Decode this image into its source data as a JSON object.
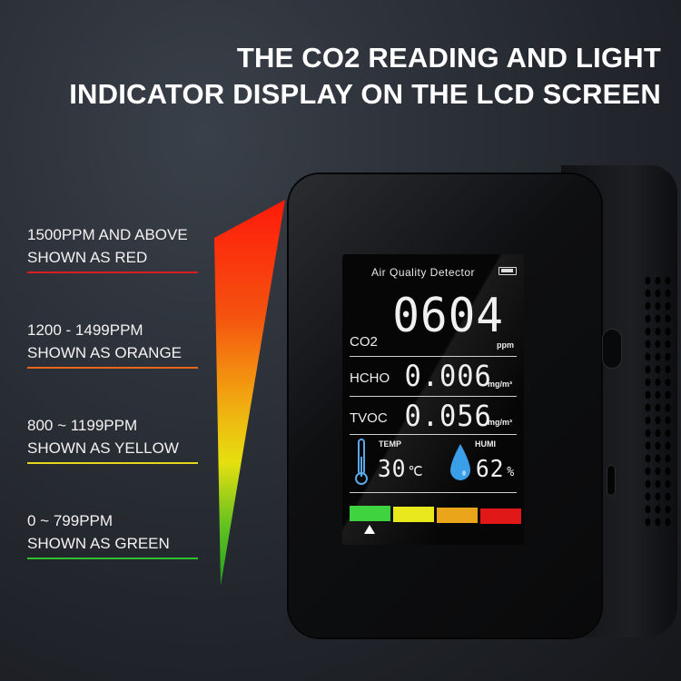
{
  "headline": {
    "line1": "THE CO2 READING AND LIGHT",
    "line2": "INDICATOR DISPLAY ON THE LCD SCREEN"
  },
  "legend": [
    {
      "line1": "1500PPM AND ABOVE",
      "line2": "SHOWN AS RED",
      "color": "#d81e1e"
    },
    {
      "line1": "1200 - 1499PPM",
      "line2": "SHOWN AS ORANGE",
      "color": "#e8661c"
    },
    {
      "line1": "800 ~ 1199PPM",
      "line2": "SHOWN AS YELLOW",
      "color": "#e6d51a"
    },
    {
      "line1": "0 ~ 799PPM",
      "line2": "SHOWN AS GREEN",
      "color": "#2fbf2f"
    }
  ],
  "screen": {
    "title": "Air Quality Detector",
    "co2": {
      "label": "CO2",
      "value": "0604",
      "unit": "ppm"
    },
    "hcho": {
      "label": "HCHO",
      "value": "0.006",
      "unit": "mg/m³"
    },
    "tvoc": {
      "label": "TVOC",
      "value": "0.056",
      "unit": "mg/m³"
    },
    "temp": {
      "label": "TEMP",
      "value": "30",
      "unit": "℃"
    },
    "humi": {
      "label": "HUMI",
      "value": "62",
      "unit": "%"
    },
    "indicator_colors": [
      "#3fd43f",
      "#e8e81c",
      "#eba51a",
      "#e01818"
    ],
    "indicator_active": 0
  }
}
